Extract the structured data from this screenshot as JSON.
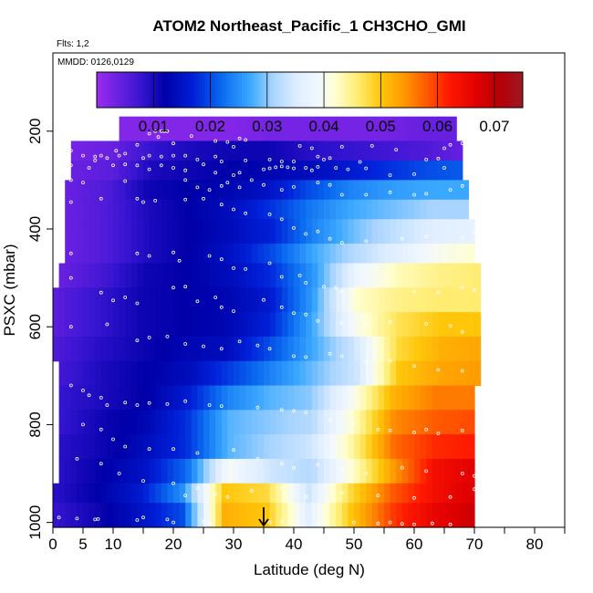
{
  "chart_data": {
    "type": "heatmap",
    "title": "ATOM2 Northeast_Pacific_1 CH3CHO_GMI",
    "annotations": {
      "flights": "Flts: 1,2",
      "dates": "MMDD: 0126,0129"
    },
    "xlabel": "Latitude (deg N)",
    "ylabel": "PSXC (mbar)",
    "xlim": [
      0,
      85
    ],
    "ylim": [
      1010,
      40
    ],
    "x_ticks": [
      "0",
      "5",
      "10",
      "20",
      "30",
      "40",
      "50",
      "60",
      "70",
      "80"
    ],
    "x_tick_values": [
      0,
      5,
      10,
      20,
      30,
      40,
      50,
      60,
      70,
      80
    ],
    "x_minor_ticks": [
      15,
      25,
      35,
      45,
      55,
      65,
      75,
      85
    ],
    "y_ticks": [
      "200",
      "400",
      "600",
      "800",
      "1000"
    ],
    "y_tick_values": [
      200,
      400,
      600,
      800,
      1000
    ],
    "colorbar": {
      "range": [
        0,
        0.075
      ],
      "ticks": [
        "0.01",
        "0.02",
        "0.03",
        "0.04",
        "0.05",
        "0.06",
        "0.07"
      ],
      "tick_values": [
        0.01,
        0.02,
        0.03,
        0.04,
        0.05,
        0.06,
        0.07
      ],
      "stops": [
        [
          0.0,
          "#9c2cf0"
        ],
        [
          0.008,
          "#3414d0"
        ],
        [
          0.012,
          "#0000a8"
        ],
        [
          0.017,
          "#0020d8"
        ],
        [
          0.022,
          "#0a6af0"
        ],
        [
          0.027,
          "#3aa8ff"
        ],
        [
          0.031,
          "#a8d4ff"
        ],
        [
          0.035,
          "#dcecff"
        ],
        [
          0.039,
          "#f2f8ff"
        ],
        [
          0.042,
          "#ffffd0"
        ],
        [
          0.046,
          "#ffec70"
        ],
        [
          0.05,
          "#ffc60a"
        ],
        [
          0.054,
          "#ff9a00"
        ],
        [
          0.058,
          "#ff5a00"
        ],
        [
          0.062,
          "#ff1800"
        ],
        [
          0.067,
          "#e00000"
        ],
        [
          0.071,
          "#b40008"
        ],
        [
          0.075,
          "#9c1a20"
        ]
      ]
    },
    "arrow_latitude": 35,
    "rows": [
      {
        "p": [
          170,
          220
        ],
        "lat": [
          11,
          67
        ],
        "v": [
          0.002,
          0.002,
          0.002,
          0.002,
          0.003,
          0.003,
          0.003,
          0.003,
          0.004,
          0.004
        ]
      },
      {
        "p": [
          220,
          260
        ],
        "lat": [
          3,
          68
        ],
        "v": [
          0.003,
          0.004,
          0.008,
          0.01,
          0.011,
          0.011,
          0.009,
          0.008,
          0.007,
          0.006,
          0.004
        ]
      },
      {
        "p": [
          260,
          300
        ],
        "lat": [
          3,
          68
        ],
        "v": [
          0.004,
          0.005,
          0.01,
          0.011,
          0.012,
          0.013,
          0.014,
          0.016,
          0.018,
          0.02,
          0.021
        ]
      },
      {
        "p": [
          300,
          340
        ],
        "lat": [
          2,
          69
        ],
        "v": [
          0.004,
          0.006,
          0.011,
          0.012,
          0.013,
          0.015,
          0.02,
          0.024,
          0.026,
          0.027,
          0.027
        ]
      },
      {
        "p": [
          340,
          380
        ],
        "lat": [
          2,
          69
        ],
        "v": [
          0.004,
          0.006,
          0.01,
          0.012,
          0.014,
          0.018,
          0.023,
          0.027,
          0.029,
          0.031,
          0.031
        ]
      },
      {
        "p": [
          380,
          430
        ],
        "lat": [
          2,
          70
        ],
        "v": [
          0.004,
          0.006,
          0.01,
          0.012,
          0.014,
          0.017,
          0.024,
          0.029,
          0.033,
          0.036,
          0.037
        ]
      },
      {
        "p": [
          430,
          470
        ],
        "lat": [
          2,
          70
        ],
        "v": [
          0.004,
          0.006,
          0.01,
          0.012,
          0.015,
          0.02,
          0.027,
          0.032,
          0.036,
          0.04,
          0.042
        ]
      },
      {
        "p": [
          470,
          520
        ],
        "lat": [
          1,
          71
        ],
        "v": [
          0.004,
          0.007,
          0.011,
          0.012,
          0.014,
          0.018,
          0.026,
          0.038,
          0.043,
          0.045,
          0.046
        ]
      },
      {
        "p": [
          520,
          570
        ],
        "lat": [
          0,
          71
        ],
        "v": [
          0.005,
          0.008,
          0.011,
          0.012,
          0.013,
          0.016,
          0.026,
          0.042,
          0.045,
          0.046,
          0.046
        ]
      },
      {
        "p": [
          570,
          620
        ],
        "lat": [
          0,
          71
        ],
        "v": [
          0.005,
          0.008,
          0.011,
          0.012,
          0.013,
          0.017,
          0.027,
          0.04,
          0.047,
          0.05,
          0.05
        ]
      },
      {
        "p": [
          620,
          670
        ],
        "lat": [
          0,
          71
        ],
        "v": [
          0.006,
          0.009,
          0.011,
          0.013,
          0.014,
          0.02,
          0.027,
          0.034,
          0.048,
          0.052,
          0.053
        ]
      },
      {
        "p": [
          670,
          720
        ],
        "lat": [
          1,
          71
        ],
        "v": [
          0.007,
          0.01,
          0.012,
          0.014,
          0.019,
          0.024,
          0.029,
          0.034,
          0.05,
          0.053,
          0.054
        ]
      },
      {
        "p": [
          720,
          770
        ],
        "lat": [
          1,
          70
        ],
        "v": [
          0.008,
          0.01,
          0.012,
          0.016,
          0.024,
          0.028,
          0.03,
          0.04,
          0.052,
          0.056,
          0.056
        ]
      },
      {
        "p": [
          770,
          820
        ],
        "lat": [
          1,
          70
        ],
        "v": [
          0.008,
          0.011,
          0.013,
          0.018,
          0.028,
          0.03,
          0.032,
          0.042,
          0.055,
          0.058,
          0.059
        ]
      },
      {
        "p": [
          820,
          870
        ],
        "lat": [
          1,
          70
        ],
        "v": [
          0.009,
          0.011,
          0.014,
          0.018,
          0.028,
          0.031,
          0.034,
          0.044,
          0.057,
          0.061,
          0.062
        ]
      },
      {
        "p": [
          870,
          920
        ],
        "lat": [
          1,
          70
        ],
        "v": [
          0.009,
          0.012,
          0.015,
          0.022,
          0.04,
          0.034,
          0.032,
          0.042,
          0.054,
          0.064,
          0.067
        ]
      },
      {
        "p": [
          920,
          960
        ],
        "lat": [
          0,
          70
        ],
        "v": [
          0.009,
          0.012,
          0.016,
          0.025,
          0.05,
          0.048,
          0.034,
          0.048,
          0.058,
          0.064,
          0.068
        ]
      },
      {
        "p": [
          960,
          1010
        ],
        "lat": [
          0,
          70
        ],
        "v": [
          0.008,
          0.011,
          0.015,
          0.02,
          0.052,
          0.05,
          0.036,
          0.05,
          0.06,
          0.066,
          0.069
        ]
      }
    ],
    "obs_points": [
      [
        17,
        200
      ],
      [
        18,
        200
      ],
      [
        18.5,
        200
      ],
      [
        19,
        200
      ],
      [
        16,
        205
      ],
      [
        17.5,
        212
      ],
      [
        23,
        210
      ],
      [
        27,
        220
      ],
      [
        29,
        222
      ],
      [
        31,
        215
      ],
      [
        32,
        218
      ],
      [
        10.5,
        240
      ],
      [
        14,
        228
      ],
      [
        20,
        225
      ],
      [
        30,
        232
      ],
      [
        41,
        230
      ],
      [
        43,
        235
      ],
      [
        48,
        232
      ],
      [
        53,
        230
      ],
      [
        57,
        238
      ],
      [
        65,
        235
      ],
      [
        66,
        228
      ],
      [
        68,
        225
      ],
      [
        70,
        230
      ],
      [
        3,
        240
      ],
      [
        5,
        250
      ],
      [
        7,
        252
      ],
      [
        8,
        250
      ],
      [
        9,
        255
      ],
      [
        11,
        250
      ],
      [
        12,
        246
      ],
      [
        15,
        255
      ],
      [
        16,
        250
      ],
      [
        18,
        252
      ],
      [
        20,
        250
      ],
      [
        22,
        250
      ],
      [
        24,
        258
      ],
      [
        27,
        252
      ],
      [
        28,
        262
      ],
      [
        32,
        260
      ],
      [
        36,
        258
      ],
      [
        38,
        262
      ],
      [
        40,
        262
      ],
      [
        44,
        252
      ],
      [
        45,
        258
      ],
      [
        46,
        255
      ],
      [
        51,
        263
      ],
      [
        62,
        258
      ],
      [
        64,
        256
      ],
      [
        3,
        270
      ],
      [
        6,
        275
      ],
      [
        7,
        260
      ],
      [
        10,
        270
      ],
      [
        12,
        268
      ],
      [
        14,
        270
      ],
      [
        16,
        278
      ],
      [
        18,
        270
      ],
      [
        20,
        275
      ],
      [
        22,
        280
      ],
      [
        25,
        268
      ],
      [
        27,
        285
      ],
      [
        30,
        290
      ],
      [
        31,
        285
      ],
      [
        35,
        278
      ],
      [
        36,
        276
      ],
      [
        37,
        274
      ],
      [
        38,
        272
      ],
      [
        39,
        274
      ],
      [
        40,
        276
      ],
      [
        42,
        275
      ],
      [
        43,
        280
      ],
      [
        44,
        273
      ],
      [
        47,
        275
      ],
      [
        49,
        278
      ],
      [
        52,
        276
      ],
      [
        56,
        290
      ],
      [
        60,
        288
      ],
      [
        65,
        275
      ],
      [
        3,
        300
      ],
      [
        5,
        305
      ],
      [
        12,
        302
      ],
      [
        22,
        300
      ],
      [
        24,
        315
      ],
      [
        26,
        320
      ],
      [
        28,
        312
      ],
      [
        29,
        305
      ],
      [
        31,
        315
      ],
      [
        33,
        300
      ],
      [
        35,
        310
      ],
      [
        38,
        320
      ],
      [
        40,
        314
      ],
      [
        44,
        305
      ],
      [
        46,
        310
      ],
      [
        48,
        330
      ],
      [
        52,
        330
      ],
      [
        56,
        325
      ],
      [
        60,
        330
      ],
      [
        62,
        328
      ],
      [
        66,
        320
      ],
      [
        68,
        312
      ],
      [
        70,
        300
      ],
      [
        3,
        345
      ],
      [
        8,
        338
      ],
      [
        14,
        338
      ],
      [
        15,
        345
      ],
      [
        17,
        342
      ],
      [
        22,
        340
      ],
      [
        25,
        338
      ],
      [
        28,
        350
      ],
      [
        30,
        360
      ],
      [
        32,
        368
      ],
      [
        36,
        370
      ],
      [
        38,
        380
      ],
      [
        40,
        398
      ],
      [
        42,
        410
      ],
      [
        44,
        405
      ],
      [
        46,
        420
      ],
      [
        48,
        428
      ],
      [
        52,
        425
      ],
      [
        58,
        420
      ],
      [
        62,
        415
      ],
      [
        68,
        418
      ],
      [
        70,
        408
      ],
      [
        3,
        450
      ],
      [
        14,
        450
      ],
      [
        16,
        455
      ],
      [
        20,
        448
      ],
      [
        21,
        465
      ],
      [
        26,
        455
      ],
      [
        28,
        462
      ],
      [
        30,
        480
      ],
      [
        32,
        482
      ],
      [
        36,
        470
      ],
      [
        38,
        498
      ],
      [
        41,
        495
      ],
      [
        42,
        510
      ],
      [
        45,
        518
      ],
      [
        47,
        520
      ],
      [
        48,
        528
      ],
      [
        50,
        530
      ],
      [
        60,
        528
      ],
      [
        64,
        530
      ],
      [
        68,
        520
      ],
      [
        70,
        525
      ],
      [
        3,
        500
      ],
      [
        8,
        530
      ],
      [
        10,
        546
      ],
      [
        12,
        540
      ],
      [
        14,
        552
      ],
      [
        20,
        520
      ],
      [
        22,
        518
      ],
      [
        24,
        548
      ],
      [
        27,
        540
      ],
      [
        28,
        560
      ],
      [
        30,
        568
      ],
      [
        35,
        545
      ],
      [
        38,
        560
      ],
      [
        40,
        572
      ],
      [
        42,
        575
      ],
      [
        44,
        588
      ],
      [
        48,
        592
      ],
      [
        52,
        596
      ],
      [
        56,
        590
      ],
      [
        62,
        594
      ],
      [
        66,
        598
      ],
      [
        68,
        610
      ],
      [
        3,
        600
      ],
      [
        9,
        595
      ],
      [
        14,
        628
      ],
      [
        16,
        622
      ],
      [
        19,
        620
      ],
      [
        22,
        635
      ],
      [
        25,
        640
      ],
      [
        28,
        645
      ],
      [
        31,
        630
      ],
      [
        34,
        638
      ],
      [
        36,
        645
      ],
      [
        40,
        660
      ],
      [
        42,
        662
      ],
      [
        46,
        655
      ],
      [
        48,
        660
      ],
      [
        52,
        672
      ],
      [
        56,
        670
      ],
      [
        60,
        680
      ],
      [
        64,
        688
      ],
      [
        68,
        690
      ],
      [
        3,
        720
      ],
      [
        5,
        730
      ],
      [
        6,
        740
      ],
      [
        8,
        745
      ],
      [
        9,
        760
      ],
      [
        12,
        755
      ],
      [
        14,
        760
      ],
      [
        16,
        756
      ],
      [
        19,
        758
      ],
      [
        22,
        752
      ],
      [
        26,
        760
      ],
      [
        28,
        762
      ],
      [
        34,
        765
      ],
      [
        38,
        770
      ],
      [
        40,
        772
      ],
      [
        42,
        775
      ],
      [
        46,
        790
      ],
      [
        50,
        798
      ],
      [
        54,
        810
      ],
      [
        56,
        812
      ],
      [
        60,
        816
      ],
      [
        62,
        810
      ],
      [
        64,
        818
      ],
      [
        68,
        812
      ],
      [
        5,
        800
      ],
      [
        8,
        810
      ],
      [
        10,
        830
      ],
      [
        12,
        845
      ],
      [
        16,
        850
      ],
      [
        20,
        850
      ],
      [
        24,
        858
      ],
      [
        30,
        852
      ],
      [
        34,
        870
      ],
      [
        38,
        880
      ],
      [
        40,
        888
      ],
      [
        44,
        882
      ],
      [
        48,
        892
      ],
      [
        52,
        900
      ],
      [
        58,
        888
      ],
      [
        62,
        895
      ],
      [
        68,
        900
      ],
      [
        70,
        905
      ],
      [
        4,
        870
      ],
      [
        8,
        880
      ],
      [
        11,
        900
      ],
      [
        15,
        915
      ],
      [
        20,
        920
      ],
      [
        22,
        945
      ],
      [
        24,
        930
      ],
      [
        27,
        942
      ],
      [
        29,
        948
      ],
      [
        33,
        935
      ],
      [
        38,
        930
      ],
      [
        42,
        948
      ],
      [
        48,
        940
      ],
      [
        54,
        945
      ],
      [
        60,
        950
      ],
      [
        66,
        948
      ],
      [
        70,
        932
      ],
      [
        1,
        990
      ],
      [
        4,
        992
      ],
      [
        7,
        994
      ],
      [
        7.5,
        993
      ],
      [
        14,
        995
      ],
      [
        15,
        990
      ],
      [
        19,
        994
      ],
      [
        20,
        1000
      ],
      [
        25,
        998
      ],
      [
        26,
        1002
      ],
      [
        36,
        1000
      ],
      [
        38,
        998
      ],
      [
        44,
        1002
      ],
      [
        50,
        1000
      ],
      [
        54,
        1002
      ],
      [
        56,
        1000
      ],
      [
        58,
        1003
      ],
      [
        60,
        1004
      ],
      [
        63,
        1002
      ],
      [
        66,
        1004
      ]
    ]
  }
}
